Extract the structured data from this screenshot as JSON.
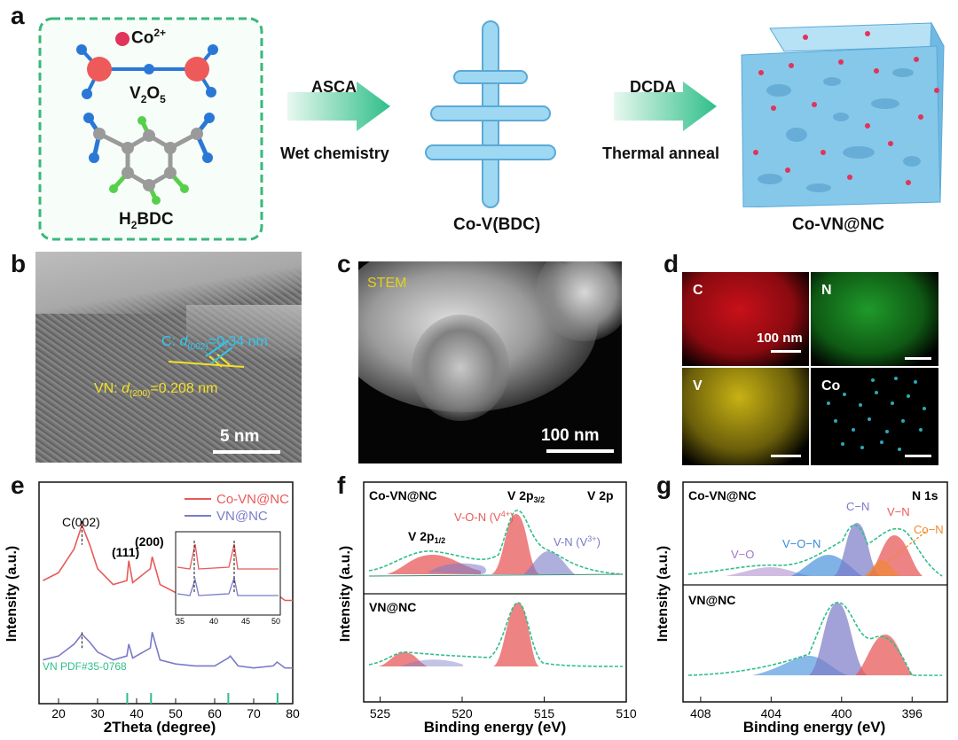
{
  "panel_a": {
    "label": "a",
    "ion": "Co",
    "ion_charge": "2+",
    "v2o5_main": "V",
    "v2o5_sub1": "2",
    "v2o5_mid": "O",
    "v2o5_sub2": "5",
    "h2bdc_main": "H",
    "h2bdc_sub": "2",
    "h2bdc_rest": "BDC",
    "arrow1_top": "ASCA",
    "arrow1_bottom": "Wet chemistry",
    "intermediate": "Co-V(BDC)",
    "arrow2_top": "DCDA",
    "arrow2_bottom": "Thermal anneal",
    "product": "Co-VN@NC",
    "colors": {
      "frame": "#3ab87a",
      "arrow": "#2fbf8a",
      "rod": "#8fd0ee",
      "cube": "#7fc6ea",
      "dot": "#e2335a",
      "atom_v": "#ee5a5a",
      "atom_o": "#2a78d6",
      "atom_c": "#9a9a9a",
      "atom_h": "#56d04a"
    }
  },
  "panel_b": {
    "label": "b",
    "c_prefix": "C: ",
    "c_d": "d",
    "c_sub": "(002)",
    "c_value": "=0.34 nm",
    "vn_prefix": "VN: ",
    "vn_d": "d",
    "vn_sub": "(200)",
    "vn_value": "=0.208 nm",
    "scale": "5 nm"
  },
  "panel_c": {
    "label": "c",
    "mode": "STEM",
    "scale": "100 nm"
  },
  "panel_d": {
    "label": "d",
    "maps": [
      "C",
      "N",
      "V",
      "Co"
    ],
    "scale": "100 nm",
    "colors": [
      "#c8101a",
      "#1f9a2a",
      "#c8b214",
      "#2aa8b8"
    ]
  },
  "panel_e": {
    "label": "e",
    "chart_data": {
      "type": "line",
      "xlabel": "2Theta (degree)",
      "ylabel": "Intensity (a.u.)",
      "xlim": [
        15,
        80
      ],
      "xticks": [
        "20",
        "30",
        "40",
        "50",
        "60",
        "70",
        "80"
      ],
      "series": [
        {
          "name": "Co-VN@NC",
          "color": "#e85a5a",
          "x": [
            16,
            20,
            24,
            26,
            28,
            30,
            34,
            37.5,
            38,
            39,
            43.5,
            44,
            46,
            50,
            55,
            60,
            63.5,
            64,
            66,
            70,
            75,
            76,
            78,
            80
          ],
          "y": [
            0.62,
            0.66,
            0.78,
            0.9,
            0.8,
            0.68,
            0.6,
            0.62,
            0.72,
            0.61,
            0.68,
            0.74,
            0.6,
            0.56,
            0.54,
            0.53,
            0.57,
            0.58,
            0.53,
            0.52,
            0.53,
            0.55,
            0.52,
            0.52
          ]
        },
        {
          "name": "VN@NC",
          "color": "#7a7ac8",
          "x": [
            16,
            20,
            24,
            26,
            28,
            30,
            34,
            37.5,
            38,
            39,
            43.5,
            44,
            46,
            50,
            55,
            60,
            63.5,
            64,
            66,
            70,
            75,
            76,
            78,
            80
          ],
          "y": [
            0.22,
            0.24,
            0.3,
            0.35,
            0.31,
            0.26,
            0.22,
            0.24,
            0.3,
            0.23,
            0.28,
            0.36,
            0.22,
            0.2,
            0.19,
            0.19,
            0.23,
            0.24,
            0.19,
            0.18,
            0.19,
            0.21,
            0.18,
            0.18
          ]
        }
      ],
      "annotations": [
        "C(002)",
        "(111)",
        "(200)"
      ],
      "reference": {
        "name": "VN PDF#35-0768",
        "positions": [
          37.6,
          43.7,
          63.5,
          76.1
        ]
      },
      "inset": {
        "xlim": [
          35,
          50
        ],
        "xticks": [
          "35",
          "40",
          "45",
          "50"
        ]
      }
    }
  },
  "panel_f": {
    "label": "f",
    "chart_data": {
      "type": "line",
      "xlabel": "Binding energy (eV)",
      "ylabel": "Intensity (a.u.)",
      "xlim": [
        526,
        510
      ],
      "xticks": [
        "525",
        "520",
        "515",
        "510"
      ],
      "region": "V 2p",
      "samples": [
        "Co-VN@NC",
        "VN@NC"
      ],
      "peaks_top": [
        {
          "label": "V 2p1/2",
          "center": 522.5
        },
        {
          "label": "V-O-N (V4+)",
          "center": 515.5,
          "color": "#e85a5a"
        },
        {
          "label": "V 2p3/2",
          "center": 515.2
        },
        {
          "label": "V-N (V3+)",
          "center": 513.8,
          "color": "#7a7ac8"
        }
      ],
      "peaks_bottom": [
        {
          "center": 524
        },
        {
          "center": 516.3
        }
      ]
    },
    "region_label": "V 2p",
    "p12_main": "V 2p",
    "p12_sub": "1/2",
    "p32_main": "V 2p",
    "p32_sub": "3/2",
    "von_main": "V-O-N (V",
    "von_sup": "4+",
    "vn_main": "V-N (V",
    "vn_sup": "3+",
    "close": ")",
    "sample_top": "Co-VN@NC",
    "sample_bottom": "VN@NC"
  },
  "panel_g": {
    "label": "g",
    "chart_data": {
      "type": "line",
      "xlabel": "Binding energy (eV)",
      "xlim": [
        409,
        394
      ],
      "xticks": [
        "408",
        "404",
        "400",
        "396"
      ],
      "region": "N 1s",
      "samples": [
        "Co-VN@NC",
        "VN@NC"
      ],
      "peaks_top": [
        {
          "label": "V−O",
          "center": 404.5,
          "color": "#a278c8"
        },
        {
          "label": "V−O−N",
          "center": 400.5,
          "color": "#3a8ad8"
        },
        {
          "label": "C−N",
          "center": 399.3,
          "color": "#7a7ac8"
        },
        {
          "label": "V−N",
          "center": 397.2,
          "color": "#e85a5a"
        },
        {
          "label": "Co−N",
          "center": 397.8,
          "color": "#f08a2a"
        }
      ],
      "peaks_bottom": [
        {
          "center": 402
        },
        {
          "center": 400.2
        },
        {
          "center": 397.6
        }
      ]
    },
    "region_label": "N 1s",
    "sample_top": "Co-VN@NC",
    "sample_bottom": "VN@NC",
    "lbl_vo": "V−O",
    "lbl_von": "V−O−N",
    "lbl_cn": "C−N",
    "lbl_vn": "V−N",
    "lbl_con": "Co−N"
  }
}
